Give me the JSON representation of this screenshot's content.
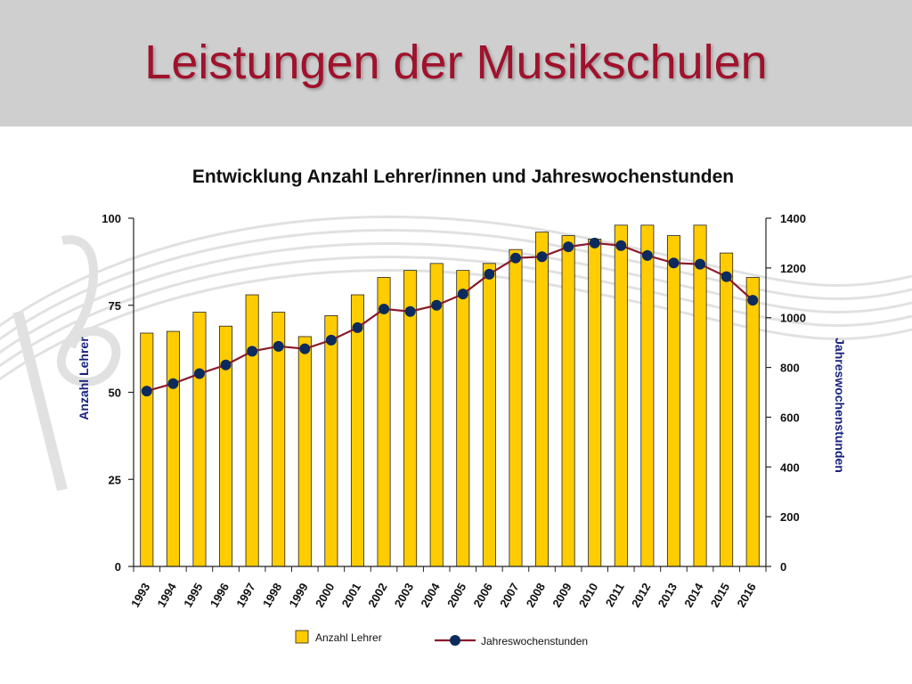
{
  "slide": {
    "title": "Leistungen der Musikschulen"
  },
  "colors": {
    "title": "#a0122c",
    "band": "#cfcfcf",
    "bar_fill": "#ffcc00",
    "bar_stroke": "#222222",
    "line": "#8b1a2b",
    "marker": "#0d2a5c",
    "left_axis_label": "#1a237e",
    "right_axis_label": "#1a237e"
  },
  "chart_data": {
    "type": "bar",
    "title": "Entwicklung Anzahl Lehrer/innen und Jahreswochenstunden",
    "categories": [
      "1993",
      "1994",
      "1995",
      "1996",
      "1997",
      "1998",
      "1999",
      "2000",
      "2001",
      "2002",
      "2003",
      "2004",
      "2005",
      "2006",
      "2007",
      "2008",
      "2009",
      "2010",
      "2011",
      "2012",
      "2013",
      "2014",
      "2015",
      "2016"
    ],
    "series": [
      {
        "name": "Anzahl Lehrer",
        "type": "bar",
        "axis": "left",
        "values": [
          67,
          67.5,
          73,
          69,
          78,
          73,
          66,
          72,
          78,
          83,
          85,
          87,
          85,
          87,
          91,
          96,
          95,
          94,
          98,
          98,
          95,
          98,
          90,
          83
        ]
      },
      {
        "name": "Jahreswochenstunden",
        "type": "line",
        "axis": "right",
        "values": [
          705,
          735,
          775,
          810,
          865,
          885,
          875,
          910,
          960,
          1035,
          1025,
          1050,
          1095,
          1175,
          1240,
          1245,
          1285,
          1300,
          1290,
          1250,
          1220,
          1215,
          1165,
          1070
        ]
      }
    ],
    "left_axis": {
      "label": "Anzahl Lehrer",
      "ylim": [
        0,
        100
      ],
      "ticks": [
        "0",
        "25",
        "50",
        "75",
        "100"
      ]
    },
    "right_axis": {
      "label": "Jahreswochenstunden",
      "ylim": [
        0,
        1400
      ],
      "ticks": [
        "0",
        "200",
        "400",
        "600",
        "800",
        "1000",
        "1200",
        "1400"
      ]
    },
    "grid": false,
    "legend_position": "bottom-center"
  }
}
